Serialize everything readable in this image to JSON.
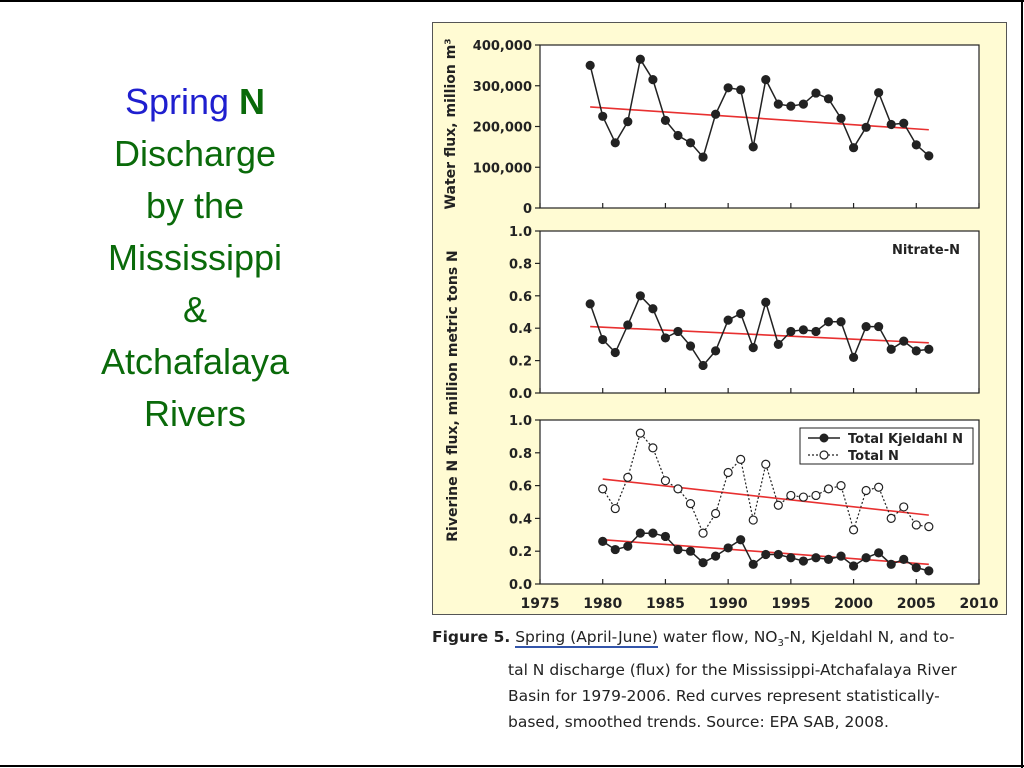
{
  "slide": {
    "title_part1": "Spring",
    "title_part2": "N",
    "title_lines": [
      "Discharge",
      "by the",
      "Mississippi",
      "&",
      "Atchafalaya",
      "Rivers"
    ]
  },
  "caption": {
    "figure_label": "Figure 5.",
    "link_text": "Spring (April-June)",
    "line1_pre": "water flow, NO",
    "line1_sub": "3",
    "line1_post": "-N, Kjeldahl N, and to-",
    "line2": "tal N discharge (flux) for the Mississippi-Atchafalaya River",
    "line3": "Basin for 1979-2006. Red curves represent statistically-",
    "line4": "based, smoothed trends. Source: EPA SAB, 2008."
  },
  "chart_data": [
    {
      "type": "line",
      "ylabel": "Water flux, million m³",
      "yticks": [
        "400,000",
        "300,000",
        "200,000",
        "100,000",
        "0"
      ],
      "ylim": [
        0,
        400000
      ],
      "xlim": [
        1975,
        2010
      ],
      "series": [
        {
          "x": [
            1979,
            1980,
            1981,
            1982,
            1983,
            1984,
            1985,
            1986,
            1987,
            1988,
            1989,
            1990,
            1991,
            1992,
            1993,
            1994,
            1995,
            1996,
            1997,
            1998,
            1999,
            2000,
            2001,
            2002,
            2003,
            2004,
            2005,
            2006
          ],
          "values": [
            350000,
            225000,
            160000,
            212000,
            365000,
            315000,
            215000,
            178000,
            160000,
            125000,
            230000,
            295000,
            290000,
            150000,
            315000,
            255000,
            250000,
            255000,
            282000,
            268000,
            220000,
            148000,
            198000,
            283000,
            205000,
            208000,
            155000,
            128000
          ],
          "color": "#222222"
        }
      ],
      "trend": {
        "x": [
          1979,
          2006
        ],
        "values": [
          248000,
          192000
        ],
        "color": "#e83030"
      }
    },
    {
      "type": "line",
      "ylabel": "Riverine N flux, million metric tons N",
      "yticks": [
        "1.0",
        "0.8",
        "0.6",
        "0.4",
        "0.2",
        "0.0"
      ],
      "ylim": [
        0,
        1.0
      ],
      "xlim": [
        1975,
        2010
      ],
      "legend": [
        "Nitrate-N"
      ],
      "series": [
        {
          "name": "Nitrate-N",
          "x": [
            1979,
            1980,
            1981,
            1982,
            1983,
            1984,
            1985,
            1986,
            1987,
            1988,
            1989,
            1990,
            1991,
            1992,
            1993,
            1994,
            1995,
            1996,
            1997,
            1998,
            1999,
            2000,
            2001,
            2002,
            2003,
            2004,
            2005,
            2006
          ],
          "values": [
            0.55,
            0.33,
            0.25,
            0.42,
            0.6,
            0.52,
            0.34,
            0.38,
            0.29,
            0.17,
            0.26,
            0.45,
            0.49,
            0.28,
            0.56,
            0.3,
            0.38,
            0.39,
            0.38,
            0.44,
            0.44,
            0.22,
            0.41,
            0.41,
            0.27,
            0.32,
            0.26,
            0.27
          ],
          "color": "#222222"
        }
      ],
      "trend": {
        "x": [
          1979,
          2006
        ],
        "values": [
          0.41,
          0.31
        ],
        "color": "#e83030"
      }
    },
    {
      "type": "line",
      "yticks": [
        "1.0",
        "0.8",
        "0.6",
        "0.4",
        "0.2",
        "0.0"
      ],
      "ylim": [
        0,
        1.0
      ],
      "xlim": [
        1975,
        2010
      ],
      "xticks": [
        "1975",
        "1980",
        "1985",
        "1990",
        "1995",
        "2000",
        "2005",
        "2010"
      ],
      "legend": [
        "Total Kjeldahl N",
        "Total N"
      ],
      "series": [
        {
          "name": "Total Kjeldahl N",
          "x": [
            1980,
            1981,
            1982,
            1983,
            1984,
            1985,
            1986,
            1987,
            1988,
            1989,
            1990,
            1991,
            1992,
            1993,
            1994,
            1995,
            1996,
            1997,
            1998,
            1999,
            2000,
            2001,
            2002,
            2003,
            2004,
            2005,
            2006
          ],
          "values": [
            0.26,
            0.21,
            0.23,
            0.31,
            0.31,
            0.29,
            0.21,
            0.2,
            0.13,
            0.17,
            0.22,
            0.27,
            0.12,
            0.18,
            0.18,
            0.16,
            0.14,
            0.16,
            0.15,
            0.17,
            0.11,
            0.16,
            0.19,
            0.12,
            0.15,
            0.1,
            0.08
          ],
          "color": "#222222",
          "style": "solid"
        },
        {
          "name": "Total N",
          "x": [
            1980,
            1981,
            1982,
            1983,
            1984,
            1985,
            1986,
            1987,
            1988,
            1989,
            1990,
            1991,
            1992,
            1993,
            1994,
            1995,
            1996,
            1997,
            1998,
            1999,
            2000,
            2001,
            2002,
            2003,
            2004,
            2005,
            2006
          ],
          "values": [
            0.58,
            0.46,
            0.65,
            0.92,
            0.83,
            0.63,
            0.58,
            0.49,
            0.31,
            0.43,
            0.68,
            0.76,
            0.39,
            0.73,
            0.48,
            0.54,
            0.53,
            0.54,
            0.58,
            0.6,
            0.33,
            0.57,
            0.59,
            0.4,
            0.47,
            0.36,
            0.35
          ],
          "color": "#222222",
          "style": "dotted"
        }
      ],
      "trend_kjeldahl": {
        "x": [
          1980,
          2006
        ],
        "values": [
          0.27,
          0.12
        ],
        "color": "#e83030"
      },
      "trend_total": {
        "x": [
          1980,
          2006
        ],
        "values": [
          0.64,
          0.42
        ],
        "color": "#e83030"
      }
    }
  ]
}
